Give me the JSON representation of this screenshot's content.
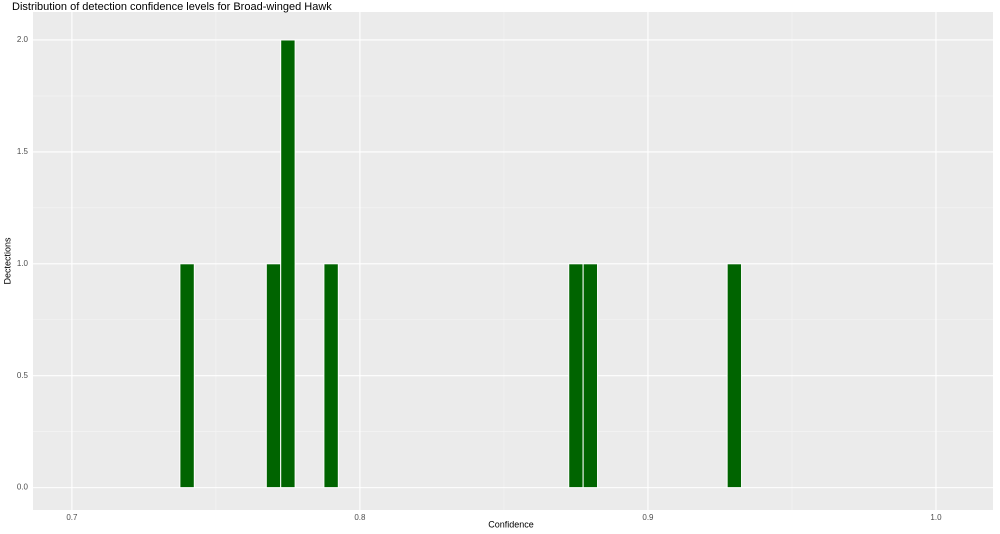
{
  "chart_data": {
    "type": "histogram",
    "title": "Distribution of detection confidence levels for Broad-winged Hawk",
    "x_label": "Confidence",
    "y_label": "Dectections",
    "bins": [
      0.7375,
      0.7425,
      0.7475,
      0.7525,
      0.7575,
      0.7625,
      0.7675,
      0.7725,
      0.7775,
      0.7825,
      0.7875,
      0.7925,
      0.7975,
      0.8025,
      0.8075,
      0.8125,
      0.8175,
      0.8225,
      0.8275,
      0.8325,
      0.8375,
      0.8425,
      0.8475,
      0.8525,
      0.8575,
      0.8625,
      0.8675,
      0.8725,
      0.8775,
      0.8825,
      0.8875,
      0.8925,
      0.8975,
      0.9025,
      0.9075,
      0.9125,
      0.9175,
      0.9225,
      0.9275,
      0.9325
    ],
    "values": [
      1,
      0,
      0,
      0,
      0,
      0,
      1,
      2,
      0,
      0,
      1,
      0,
      0,
      0,
      0,
      0,
      0,
      0,
      0,
      0,
      0,
      0,
      0,
      0,
      0,
      0,
      0,
      1,
      1,
      0,
      0,
      0,
      0,
      0,
      0,
      0,
      0,
      0,
      1
    ],
    "color": "#006400",
    "xlim": [
      0.6865,
      1.0198
    ],
    "xticks": [
      0.7,
      0.8,
      0.9,
      {
        "value": 1,
        "label": "1.0"
      }
    ],
    "ylim": [
      -0.1,
      2.125
    ],
    "yticks": [
      {
        "value": 0,
        "label": "0.0"
      },
      0.5,
      {
        "value": 1,
        "label": "1.0"
      },
      1.5,
      {
        "value": 2,
        "label": "2.0"
      }
    ],
    "grid": true
  }
}
